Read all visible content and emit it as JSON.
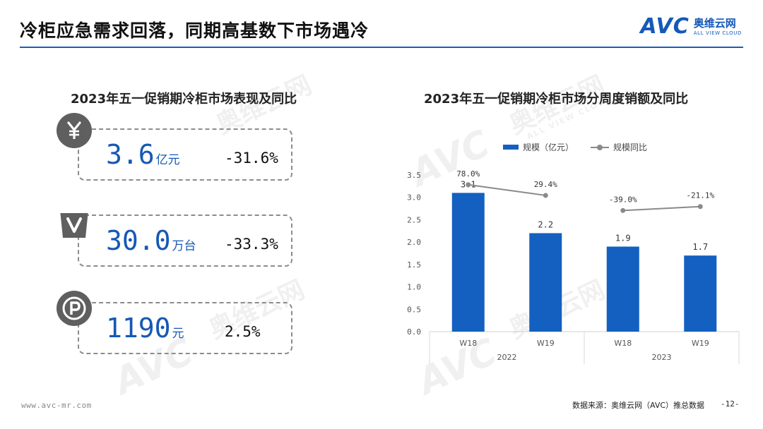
{
  "header": {
    "title": "冷柜应急需求回落，同期高基数下市场遇冷",
    "logo_mark": "AVC",
    "logo_cn": "奥维云网",
    "logo_en": "ALL VIEW CLOUD"
  },
  "left_panel": {
    "title": "2023年五一促销期冷柜市场表现及同比",
    "kpis": [
      {
        "icon": "yen-icon",
        "value": "3.6",
        "unit": "亿元",
        "change": "-31.6%"
      },
      {
        "icon": "shopping-bag-icon",
        "value": "30.0",
        "unit": "万台",
        "change": "-33.3%"
      },
      {
        "icon": "price-p-icon",
        "value": "1190",
        "unit": "元",
        "change": "2.5%"
      }
    ]
  },
  "watermark": {
    "cn": "奥维云网",
    "en": "ALL VIEW CLOUD",
    "mark": "AVC"
  },
  "chart_data": {
    "type": "bar",
    "title": "2023年五一促销期冷柜市场分周度销额及同比",
    "categories": [
      "W18",
      "W19",
      "W18",
      "W19"
    ],
    "groups": [
      {
        "label": "2022",
        "categories": [
          "W18",
          "W19"
        ]
      },
      {
        "label": "2023",
        "categories": [
          "W18",
          "W19"
        ]
      }
    ],
    "series": [
      {
        "name": "规模（亿元）",
        "type": "bar",
        "values": [
          3.1,
          2.2,
          1.9,
          1.7
        ],
        "labels": [
          "3.1",
          "2.2",
          "1.9",
          "1.7"
        ],
        "color": "#1360c0"
      },
      {
        "name": "规模同比",
        "type": "line",
        "values": [
          78.0,
          29.4,
          -39.0,
          -21.1
        ],
        "labels": [
          "78.0%",
          "29.4%",
          "-39.0%",
          "-21.1%"
        ],
        "color": "#8a8a8a"
      }
    ],
    "y_ticks": [
      "0.0",
      "0.5",
      "1.0",
      "1.5",
      "2.0",
      "2.5",
      "3.0",
      "3.5"
    ],
    "ylim": [
      0,
      3.5
    ],
    "grid": false,
    "legend_position": "top"
  },
  "footer": {
    "website": "www.avc-mr.com",
    "source": "数据来源：奥维云网（AVC）推总数据",
    "page": "-12-"
  }
}
